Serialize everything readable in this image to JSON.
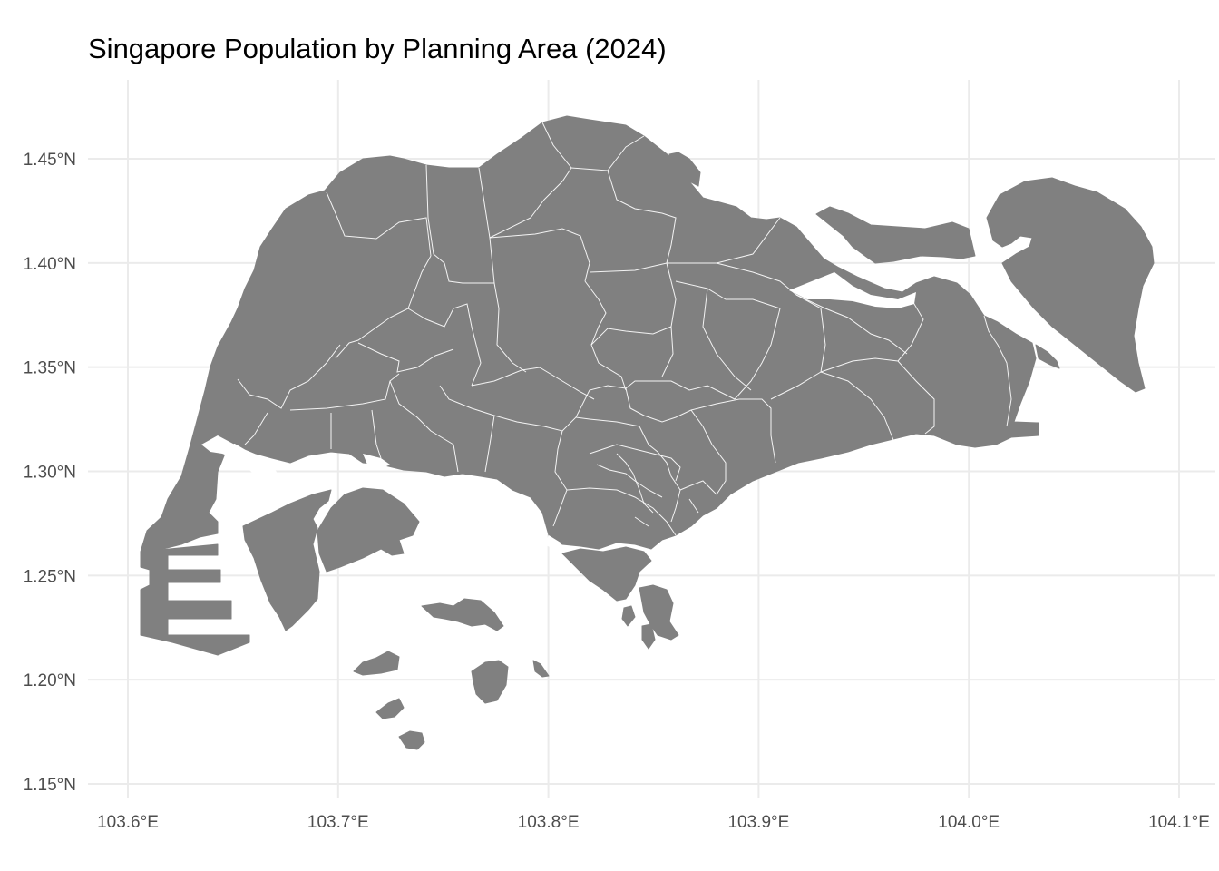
{
  "title": "Singapore Population by Planning Area (2024)",
  "axes": {
    "lon_ticks": [
      "103.6°E",
      "103.7°E",
      "103.8°E",
      "103.9°E",
      "104.0°E",
      "104.1°E"
    ],
    "lat_ticks": [
      "1.45°N",
      "1.40°N",
      "1.35°N",
      "1.30°N",
      "1.25°N",
      "1.20°N",
      "1.15°N"
    ],
    "lon_values": [
      103.6,
      103.7,
      103.8,
      103.9,
      104.0,
      104.1
    ],
    "lat_values": [
      1.45,
      1.4,
      1.35,
      1.3,
      1.25,
      1.2,
      1.15
    ]
  },
  "map": {
    "region": "Singapore",
    "fill_color": "#808080",
    "boundary_color": "#ffffff",
    "grid_color": "#ebebeb"
  }
}
